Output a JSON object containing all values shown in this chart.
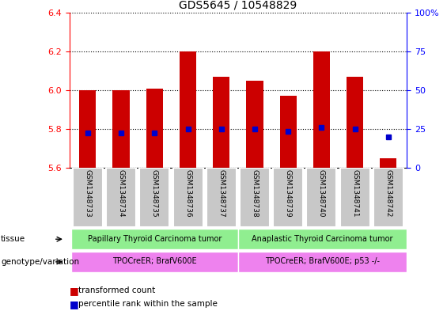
{
  "title": "GDS5645 / 10548829",
  "samples": [
    "GSM1348733",
    "GSM1348734",
    "GSM1348735",
    "GSM1348736",
    "GSM1348737",
    "GSM1348738",
    "GSM1348739",
    "GSM1348740",
    "GSM1348741",
    "GSM1348742"
  ],
  "transformed_count": [
    6.0,
    6.0,
    6.01,
    6.2,
    6.07,
    6.05,
    5.97,
    6.2,
    6.07,
    5.65
  ],
  "percentile_values": [
    5.78,
    5.78,
    5.78,
    5.8,
    5.8,
    5.8,
    5.79,
    5.81,
    5.8,
    5.76
  ],
  "ylim_left": [
    5.6,
    6.4
  ],
  "ylim_right": [
    0,
    100
  ],
  "yticks_left": [
    5.6,
    5.8,
    6.0,
    6.2,
    6.4
  ],
  "yticks_right": [
    0,
    25,
    50,
    75,
    100
  ],
  "bar_color": "#cc0000",
  "dot_color": "#0000cc",
  "tissue_label1": "Papillary Thyroid Carcinoma tumor",
  "tissue_label2": "Anaplastic Thyroid Carcinoma tumor",
  "tissue_color": "#90ee90",
  "genotype_label1": "TPOCreER; BrafV600E",
  "genotype_label2": "TPOCreER; BrafV600E; p53 -/-",
  "genotype_color": "#ee82ee",
  "legend_transformed": "transformed count",
  "legend_percentile": "percentile rank within the sample",
  "bar_width": 0.5,
  "background_color": "#ffffff",
  "tick_label_bg": "#c8c8c8"
}
